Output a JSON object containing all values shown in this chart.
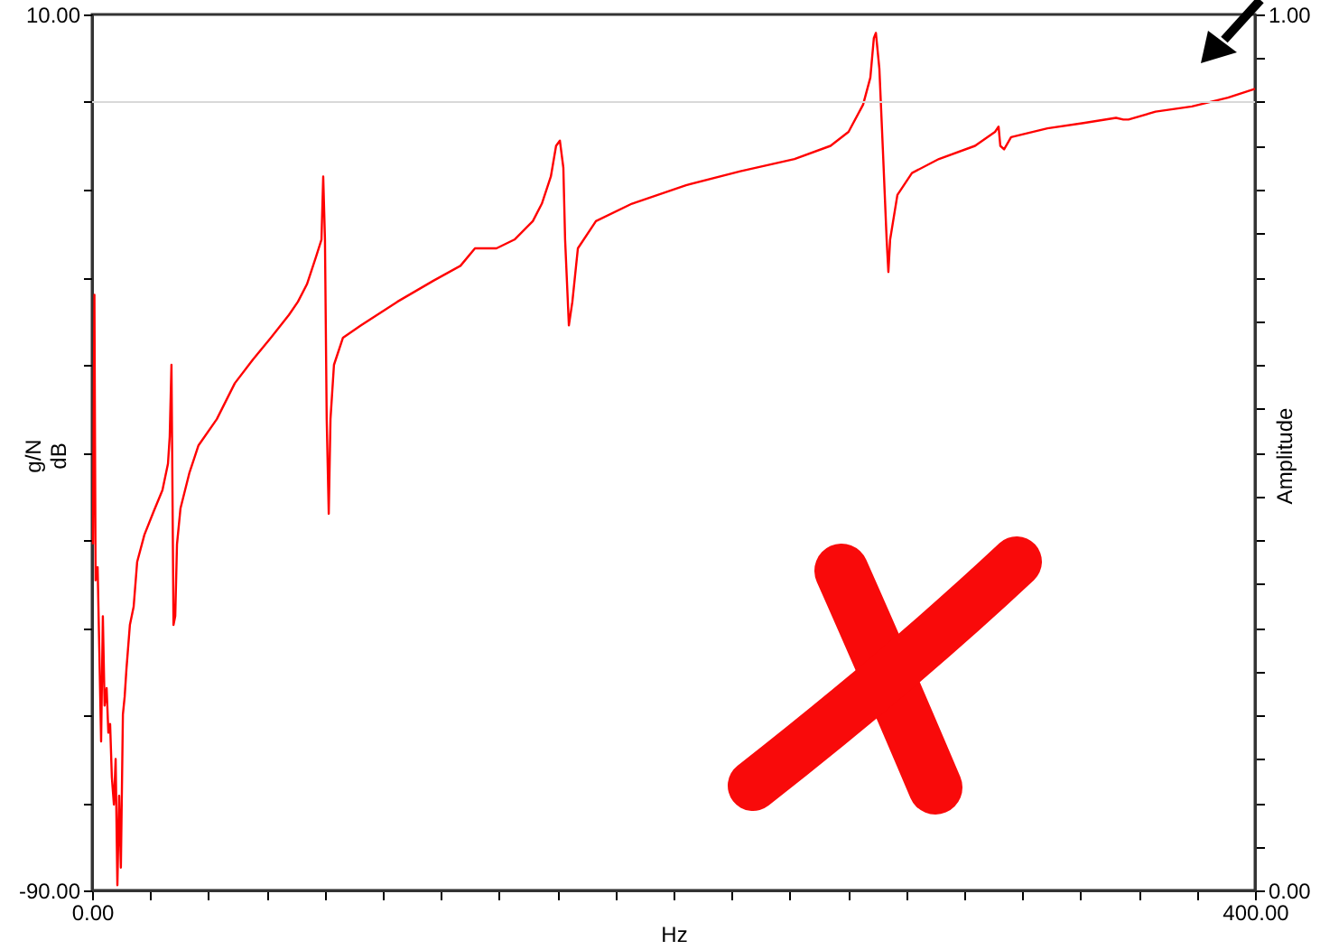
{
  "chart_data": {
    "type": "line",
    "xlabel": "Hz",
    "ylabel": "g/N\ndB",
    "y2label": "Amplitude",
    "xlim": [
      0,
      400
    ],
    "xticks": [
      {
        "value": 0,
        "label": "0.00"
      },
      {
        "value": 20,
        "label": null
      },
      {
        "value": 40,
        "label": null
      },
      {
        "value": 60,
        "label": null
      },
      {
        "value": 80,
        "label": null
      },
      {
        "value": 100,
        "label": null
      },
      {
        "value": 120,
        "label": null
      },
      {
        "value": 140,
        "label": null
      },
      {
        "value": 160,
        "label": null
      },
      {
        "value": 180,
        "label": null
      },
      {
        "value": 200,
        "label": null
      },
      {
        "value": 220,
        "label": null
      },
      {
        "value": 240,
        "label": null
      },
      {
        "value": 260,
        "label": null
      },
      {
        "value": 280,
        "label": null
      },
      {
        "value": 300,
        "label": null
      },
      {
        "value": 320,
        "label": null
      },
      {
        "value": 340,
        "label": null
      },
      {
        "value": 360,
        "label": null
      },
      {
        "value": 380,
        "label": null
      },
      {
        "value": 400,
        "label": "400.00"
      }
    ],
    "ylim": [
      -90,
      10
    ],
    "yticks": [
      {
        "value": -90,
        "label": "-90.00"
      },
      {
        "value": -85,
        "label": null
      },
      {
        "value": -80,
        "label": null
      },
      {
        "value": -75,
        "label": null
      },
      {
        "value": -70,
        "label": null
      },
      {
        "value": -65,
        "label": null
      },
      {
        "value": -60,
        "label": null
      },
      {
        "value": -55,
        "label": null
      },
      {
        "value": -50,
        "label": null
      },
      {
        "value": -45,
        "label": null
      },
      {
        "value": -40,
        "label": null
      },
      {
        "value": -35,
        "label": null
      },
      {
        "value": -30,
        "label": null
      },
      {
        "value": -25,
        "label": null
      },
      {
        "value": -20,
        "label": null
      },
      {
        "value": -15,
        "label": null
      },
      {
        "value": -10,
        "label": null
      },
      {
        "value": -5,
        "label": null
      },
      {
        "value": 0,
        "label": null
      },
      {
        "value": 5,
        "label": null
      },
      {
        "value": 10,
        "label": "10.00"
      }
    ],
    "y2lim": [
      0,
      1
    ],
    "y2ticks": [
      {
        "value": 0,
        "label": "0.00"
      },
      {
        "value": 0.05,
        "label": null
      },
      {
        "value": 0.1,
        "label": null
      },
      {
        "value": 0.15,
        "label": null
      },
      {
        "value": 0.2,
        "label": null
      },
      {
        "value": 0.25,
        "label": null
      },
      {
        "value": 0.3,
        "label": null
      },
      {
        "value": 0.35,
        "label": null
      },
      {
        "value": 0.4,
        "label": null
      },
      {
        "value": 0.45,
        "label": null
      },
      {
        "value": 0.5,
        "label": null
      },
      {
        "value": 0.55,
        "label": null
      },
      {
        "value": 0.6,
        "label": null
      },
      {
        "value": 0.65,
        "label": null
      },
      {
        "value": 0.7,
        "label": null
      },
      {
        "value": 0.75,
        "label": null
      },
      {
        "value": 0.8,
        "label": null
      },
      {
        "value": 0.85,
        "label": null
      },
      {
        "value": 0.9,
        "label": null
      },
      {
        "value": 0.95,
        "label": null
      },
      {
        "value": 1,
        "label": "1.00"
      }
    ],
    "ref_lines": [
      {
        "axis": "y",
        "value": 0,
        "color": "#d9d9d9"
      }
    ],
    "grid": false,
    "marker": "none",
    "line_style": "solid",
    "series": [
      {
        "color": "#ff0000",
        "x": [
          0.3,
          0.8,
          1.2,
          1.9,
          2.5,
          3.1,
          3.7,
          4.3,
          5.0,
          5.6,
          6.2,
          6.8,
          7.5,
          8.1,
          8.7,
          9.3,
          9.9,
          10.6,
          11.2,
          11.8,
          13.0,
          14.3,
          15.5,
          18.0,
          21.1,
          24.2,
          26.1,
          26.7,
          27.3,
          27.6,
          28.0,
          28.6,
          29.2,
          30.4,
          33.5,
          36.6,
          42.9,
          49.1,
          55.3,
          61.5,
          67.7,
          70.8,
          73.9,
          77.0,
          78.9,
          79.5,
          80.1,
          80.7,
          81.4,
          82.0,
          83.2,
          86.3,
          92.5,
          105.0,
          117.4,
          126.7,
          131.7,
          139.1,
          145.3,
          151.6,
          154.7,
          157.8,
          159.6,
          160.9,
          162.1,
          162.7,
          164.0,
          165.2,
          167.1,
          173.3,
          185.7,
          204.3,
          223.0,
          241.6,
          254.0,
          260.2,
          265.2,
          267.7,
          268.9,
          269.6,
          270.8,
          272.0,
          273.3,
          273.9,
          274.5,
          277.0,
          282.0,
          291.3,
          303.7,
          310.6,
          311.8,
          312.4,
          313.7,
          316.1,
          328.6,
          341.0,
          352.2,
          354.7,
          356.5,
          365.8,
          378.3,
          390.7,
          400.0
        ],
        "values": [
          -50.5,
          -22.0,
          -54.6,
          -53.1,
          -62.8,
          -73.0,
          -58.7,
          -68.9,
          -66.9,
          -72.0,
          -71.0,
          -77.1,
          -80.2,
          -75.0,
          -89.4,
          -79.2,
          -87.4,
          -69.9,
          -67.9,
          -64.8,
          -59.7,
          -57.6,
          -52.5,
          -49.4,
          -46.8,
          -44.3,
          -41.3,
          -38.2,
          -30.0,
          -42.3,
          -59.7,
          -58.7,
          -50.5,
          -46.4,
          -42.3,
          -39.2,
          -36.2,
          -32.1,
          -29.4,
          -26.9,
          -24.3,
          -22.8,
          -20.8,
          -17.7,
          -15.7,
          -8.5,
          -15.7,
          -36.2,
          -47.0,
          -36.2,
          -30.0,
          -26.9,
          -25.5,
          -22.8,
          -20.4,
          -18.7,
          -16.7,
          -16.7,
          -15.7,
          -13.6,
          -11.6,
          -8.5,
          -5.0,
          -4.4,
          -7.5,
          -15.7,
          -25.5,
          -22.8,
          -16.7,
          -13.6,
          -11.6,
          -9.5,
          -7.9,
          -6.5,
          -5.0,
          -3.4,
          -0.3,
          2.8,
          7.3,
          7.9,
          3.8,
          -5.4,
          -15.7,
          -19.4,
          -15.7,
          -10.6,
          -8.1,
          -6.5,
          -5.0,
          -3.4,
          -2.8,
          -5.0,
          -5.4,
          -4.0,
          -3.0,
          -2.4,
          -1.8,
          -2.0,
          -2.0,
          -1.1,
          -0.5,
          0.5,
          1.5
        ]
      }
    ]
  }
}
